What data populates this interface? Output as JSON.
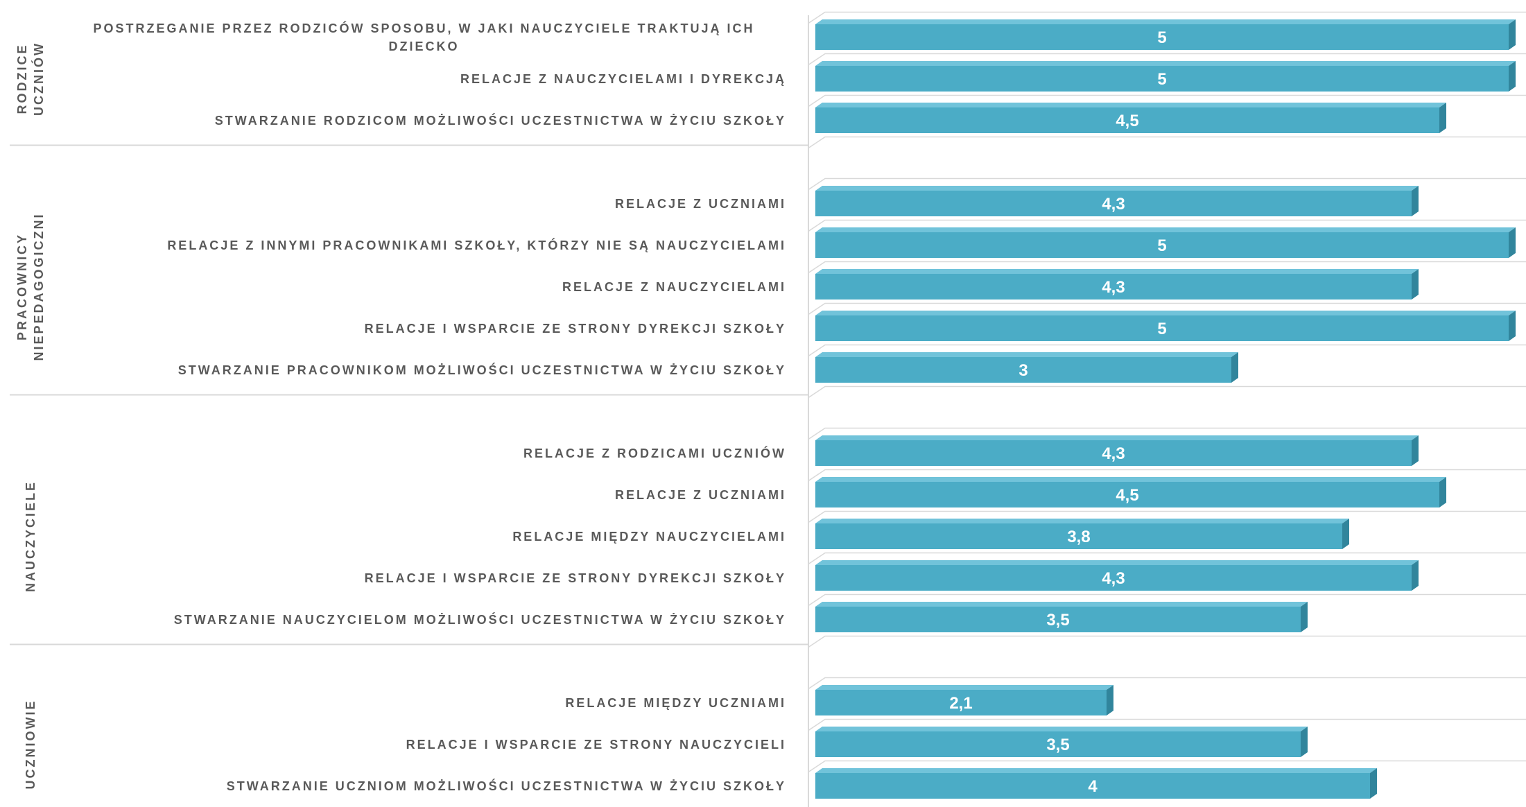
{
  "chart_data": {
    "type": "bar",
    "groups": [
      {
        "name": "RODZICE UCZNIÓW",
        "categories": [
          "POSTRZEGANIE PRZEZ RODZICÓW SPOSOBU, W JAKI NAUCZYCIELE TRAKTUJĄ ICH DZIECKO",
          "RELACJE Z NAUCZYCIELAMI I DYREKCJĄ",
          "STWARZANIE RODZICOM MOŻLIWOŚCI UCZESTNICTWA W ŻYCIU SZKOŁY"
        ],
        "values": [
          5,
          5,
          4.5
        ],
        "value_labels": [
          "5",
          "5",
          "4,5"
        ]
      },
      {
        "name": "PRACOWNICY NIEPEDAGOGICZNI",
        "categories": [
          "RELACJE Z UCZNIAMI",
          "RELACJE Z INNYMI PRACOWNIKAMI SZKOŁY, KTÓRZY NIE SĄ NAUCZYCIELAMI",
          "RELACJE Z NAUCZYCIELAMI",
          "RELACJE I WSPARCIE ZE STRONY DYREKCJI SZKOŁY",
          "STWARZANIE PRACOWNIKOM MOŻLIWOŚCI UCZESTNICTWA W ŻYCIU SZKOŁY"
        ],
        "values": [
          4.3,
          5,
          4.3,
          5,
          3
        ],
        "value_labels": [
          "4,3",
          "5",
          "4,3",
          "5",
          "3"
        ]
      },
      {
        "name": "NAUCZYCIELE",
        "categories": [
          "RELACJE Z RODZICAMI UCZNIÓW",
          "RELACJE Z UCZNIAMI",
          "RELACJE MIĘDZY NAUCZYCIELAMI",
          "RELACJE I WSPARCIE ZE STRONY DYREKCJI SZKOŁY",
          "STWARZANIE NAUCZYCIELOM MOŻLIWOŚCI UCZESTNICTWA W ŻYCIU SZKOŁY"
        ],
        "values": [
          4.3,
          4.5,
          3.8,
          4.3,
          3.5
        ],
        "value_labels": [
          "4,3",
          "4,5",
          "3,8",
          "4,3",
          "3,5"
        ]
      },
      {
        "name": "UCZNIOWIE",
        "categories": [
          "RELACJE MIĘDZY UCZNIAMI",
          "RELACJE I WSPARCIE ZE STRONY NAUCZYCIELI",
          "STWARZANIE UCZNIOM MOŻLIWOŚCI UCZESTNICTWA W ŻYCIU SZKOŁY"
        ],
        "values": [
          2.1,
          3.5,
          4
        ],
        "value_labels": [
          "2,1",
          "3,5",
          "4"
        ]
      }
    ],
    "color": "#4bacc6"
  }
}
